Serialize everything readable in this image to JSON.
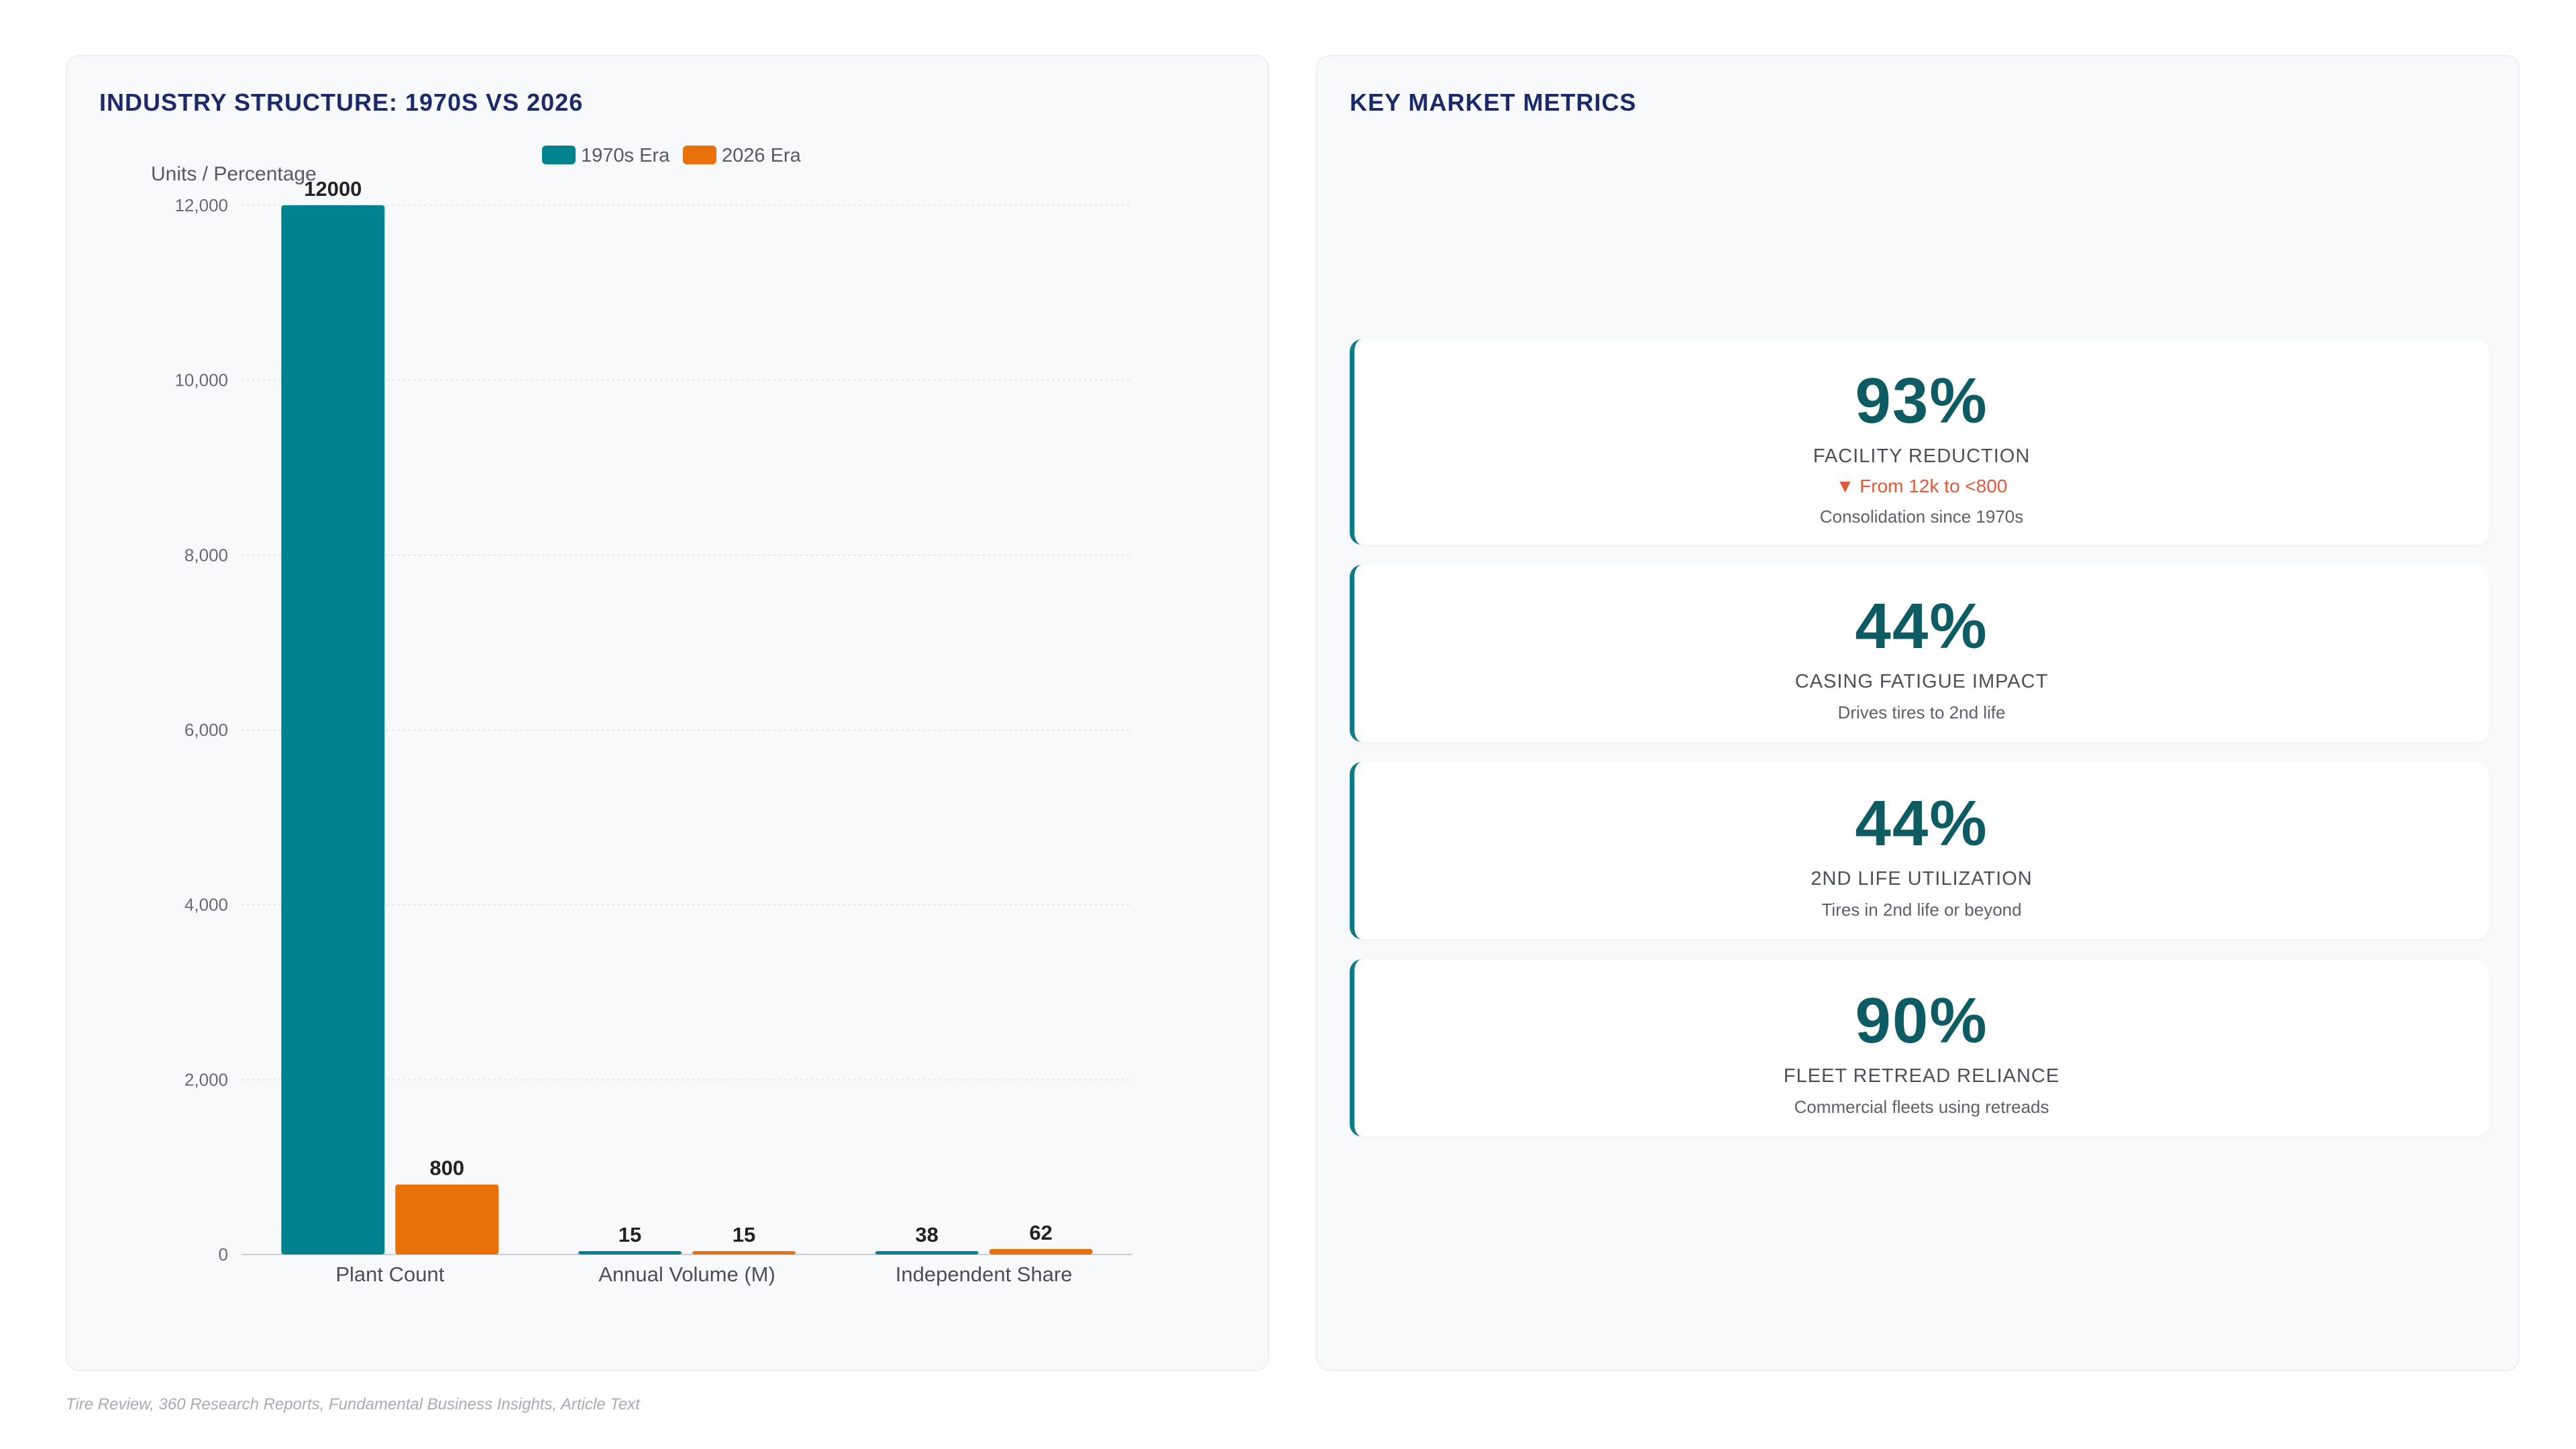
{
  "chart_panel": {
    "title": "INDUSTRY STRUCTURE: 1970S VS 2026"
  },
  "chart_data": {
    "type": "bar",
    "categories": [
      "Plant Count",
      "Annual Volume (M)",
      "Independent Share"
    ],
    "series": [
      {
        "name": "1970s Era",
        "values": [
          12000,
          15,
          38
        ],
        "color": "#00838f"
      },
      {
        "name": "2026 Era",
        "values": [
          800,
          15,
          62
        ],
        "color": "#e8710a"
      }
    ],
    "ylabel": "Units / Percentage",
    "ylim": [
      0,
      12000
    ],
    "yticks": [
      0,
      2000,
      4000,
      6000,
      8000,
      10000,
      12000
    ],
    "ytick_labels": [
      "0",
      "2,000",
      "4,000",
      "6,000",
      "8,000",
      "10,000",
      "12,000"
    ],
    "legend_position": "top-center",
    "grid": true
  },
  "metrics_panel": {
    "title": "KEY MARKET METRICS",
    "cards": [
      {
        "value": "93%",
        "label": "FACILITY REDUCTION",
        "change": "▼ From 12k to <800",
        "sub": "Consolidation since 1970s"
      },
      {
        "value": "44%",
        "label": "CASING FATIGUE IMPACT",
        "sub": "Drives tires to 2nd life"
      },
      {
        "value": "44%",
        "label": "2ND LIFE UTILIZATION",
        "sub": "Tires in 2nd life or beyond"
      },
      {
        "value": "90%",
        "label": "FLEET RETREAD RELIANCE",
        "sub": "Commercial fleets using retreads"
      }
    ]
  },
  "footer": {
    "source": "Tire Review, 360 Research Reports, Fundamental Business Insights, Article Text"
  }
}
